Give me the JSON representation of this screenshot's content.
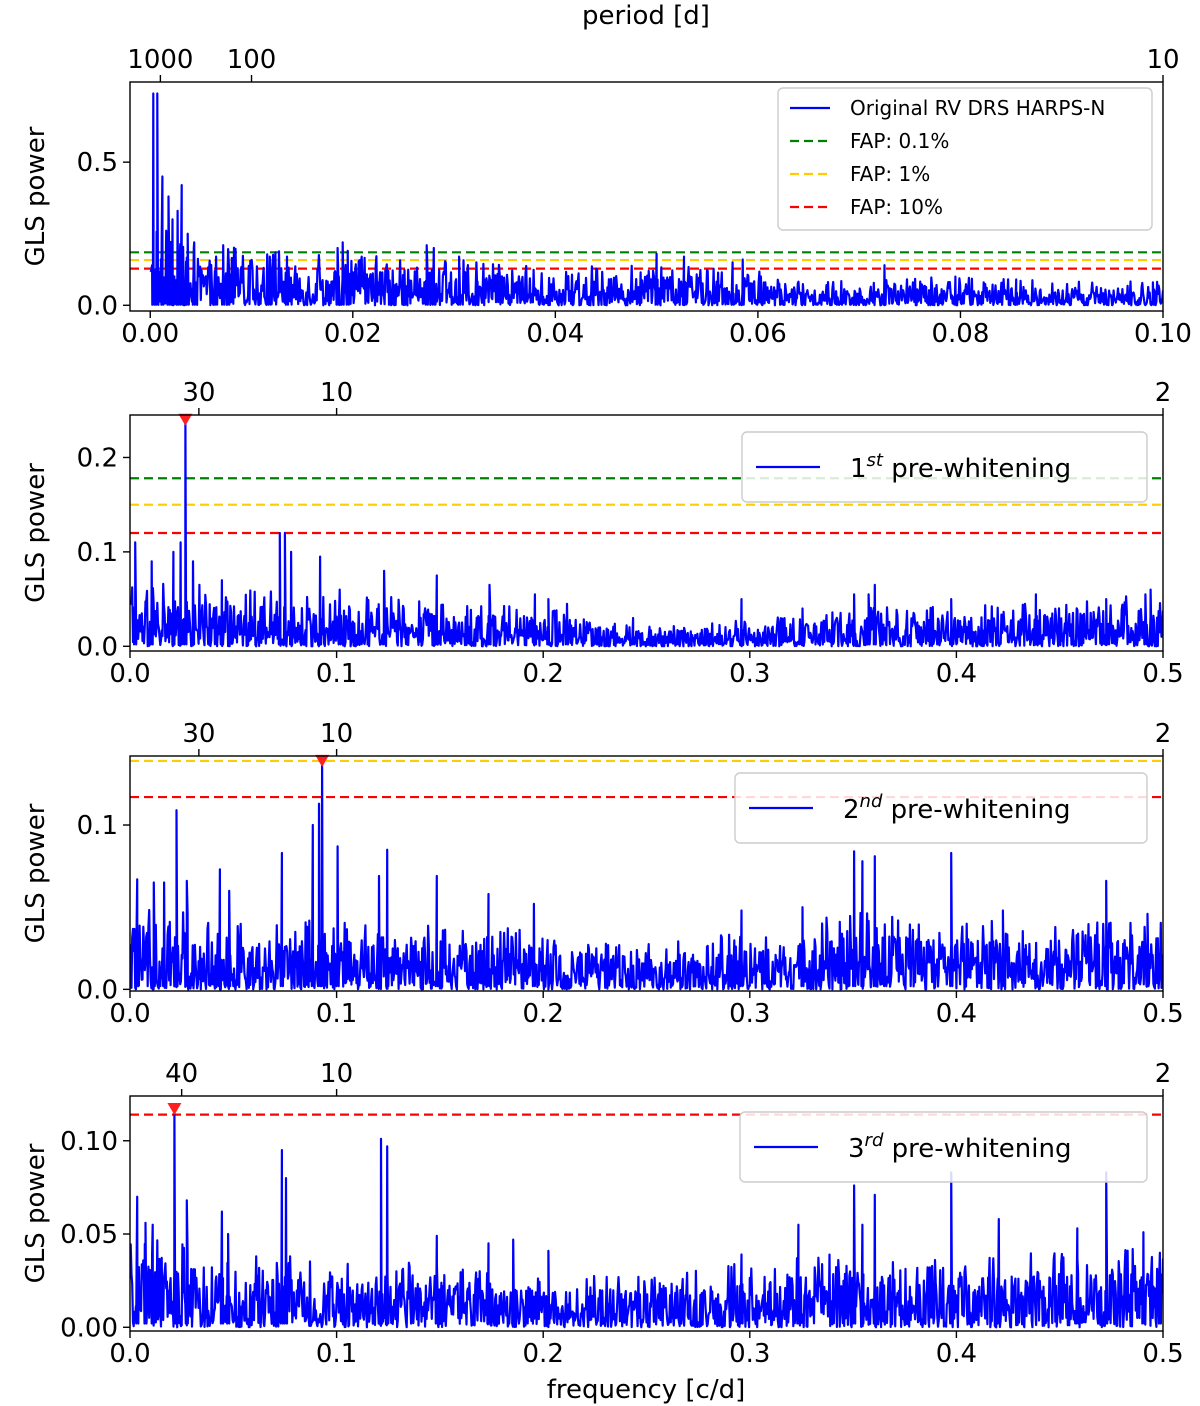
{
  "figure": {
    "top_axis_title": "period [d]",
    "bottom_axis_title": "frequency [c/d]"
  },
  "chart_data": [
    {
      "type": "line",
      "id": "original",
      "ylabel": "GLS power",
      "xlim": [
        -0.002,
        0.1
      ],
      "ylim": [
        -0.02,
        0.78
      ],
      "xticks": [
        0.0,
        0.02,
        0.04,
        0.06,
        0.08,
        0.1
      ],
      "xticklabels": [
        "0.00",
        "0.02",
        "0.04",
        "0.06",
        "0.08",
        "0.10"
      ],
      "yticks": [
        0.0,
        0.5
      ],
      "yticklabels": [
        "0.0",
        "0.5"
      ],
      "period_ticks": [
        1000,
        100,
        10
      ],
      "period_ticklabels": [
        "1000",
        "100",
        "10"
      ],
      "fap": [
        {
          "label": "FAP: 0.1%",
          "value": 0.185,
          "color": "#008000"
        },
        {
          "label": "FAP: 1%",
          "value": 0.158,
          "color": "#ffcc00"
        },
        {
          "label": "FAP: 10%",
          "value": 0.128,
          "color": "#ff0000"
        }
      ],
      "legend": {
        "position": "top-right",
        "series_label": "Original RV DRS HARPS-N"
      },
      "peaks": [
        [
          0.0003,
          0.74
        ],
        [
          0.0007,
          0.74
        ],
        [
          0.0012,
          0.45
        ],
        [
          0.0018,
          0.38
        ],
        [
          0.0022,
          0.3
        ],
        [
          0.0027,
          0.33
        ],
        [
          0.0031,
          0.42
        ],
        [
          0.0037,
          0.25
        ],
        [
          0.0043,
          0.2
        ],
        [
          0.0065,
          0.17
        ],
        [
          0.0072,
          0.21
        ],
        [
          0.0077,
          0.19
        ],
        [
          0.0118,
          0.17
        ],
        [
          0.0135,
          0.17
        ],
        [
          0.0185,
          0.2
        ],
        [
          0.019,
          0.22
        ],
        [
          0.0195,
          0.19
        ],
        [
          0.0273,
          0.21
        ],
        [
          0.028,
          0.2
        ],
        [
          0.0305,
          0.17
        ],
        [
          0.0322,
          0.15
        ],
        [
          0.05,
          0.18
        ],
        [
          0.0527,
          0.17
        ],
        [
          0.0575,
          0.15
        ],
        [
          0.0585,
          0.16
        ],
        [
          0.0725,
          0.14
        ],
        [
          0.0795,
          0.1
        ],
        [
          0.0855,
          0.09
        ],
        [
          0.099,
          0.08
        ]
      ],
      "envelope": [
        [
          0.0,
          0.2
        ],
        [
          0.005,
          0.16
        ],
        [
          0.01,
          0.14
        ],
        [
          0.02,
          0.13
        ],
        [
          0.03,
          0.12
        ],
        [
          0.04,
          0.1
        ],
        [
          0.05,
          0.1
        ],
        [
          0.06,
          0.09
        ],
        [
          0.065,
          0.06
        ],
        [
          0.07,
          0.07
        ],
        [
          0.08,
          0.07
        ],
        [
          0.09,
          0.06
        ],
        [
          0.1,
          0.06
        ]
      ]
    },
    {
      "type": "line",
      "id": "pw1",
      "ylabel": "GLS power",
      "xlim": [
        0.0,
        0.5
      ],
      "ylim": [
        -0.005,
        0.245
      ],
      "xticks": [
        0.0,
        0.1,
        0.2,
        0.3,
        0.4,
        0.5
      ],
      "xticklabels": [
        "0.0",
        "0.1",
        "0.2",
        "0.3",
        "0.4",
        "0.5"
      ],
      "yticks": [
        0.0,
        0.1,
        0.2
      ],
      "yticklabels": [
        "0.0",
        "0.1",
        "0.2"
      ],
      "period_ticks": [
        30,
        10,
        2
      ],
      "period_ticklabels": [
        "30",
        "10",
        "2"
      ],
      "fap": [
        {
          "label": "FAP: 0.1%",
          "value": 0.178,
          "color": "#008000"
        },
        {
          "label": "FAP: 1%",
          "value": 0.15,
          "color": "#ffcc00"
        },
        {
          "label": "FAP: 10%",
          "value": 0.12,
          "color": "#ff0000"
        }
      ],
      "legend": {
        "position": "upper-right",
        "ordinal": "1",
        "suffix": "st",
        "rest": " pre-whitening"
      },
      "marker": {
        "x": 0.0268,
        "y": 0.24
      },
      "peaks": [
        [
          0.0268,
          0.24
        ],
        [
          0.0025,
          0.11
        ],
        [
          0.0105,
          0.09
        ],
        [
          0.021,
          0.1
        ],
        [
          0.0245,
          0.11
        ],
        [
          0.0305,
          0.09
        ],
        [
          0.0445,
          0.07
        ],
        [
          0.0725,
          0.12
        ],
        [
          0.075,
          0.12
        ],
        [
          0.078,
          0.1
        ],
        [
          0.092,
          0.095
        ],
        [
          0.1015,
          0.06
        ],
        [
          0.123,
          0.08
        ],
        [
          0.1485,
          0.075
        ],
        [
          0.174,
          0.065
        ],
        [
          0.196,
          0.055
        ],
        [
          0.2025,
          0.05
        ],
        [
          0.2115,
          0.045
        ],
        [
          0.2435,
          0.03
        ],
        [
          0.296,
          0.05
        ],
        [
          0.3255,
          0.04
        ],
        [
          0.3505,
          0.055
        ],
        [
          0.3575,
          0.055
        ],
        [
          0.3605,
          0.065
        ],
        [
          0.3975,
          0.05
        ],
        [
          0.4385,
          0.055
        ],
        [
          0.4725,
          0.05
        ],
        [
          0.4915,
          0.055
        ],
        [
          0.494,
          0.06
        ]
      ],
      "envelope": [
        [
          0.0,
          0.05
        ],
        [
          0.05,
          0.045
        ],
        [
          0.1,
          0.04
        ],
        [
          0.15,
          0.035
        ],
        [
          0.2,
          0.03
        ],
        [
          0.25,
          0.015
        ],
        [
          0.3,
          0.02
        ],
        [
          0.35,
          0.03
        ],
        [
          0.4,
          0.03
        ],
        [
          0.45,
          0.035
        ],
        [
          0.5,
          0.04
        ]
      ]
    },
    {
      "type": "line",
      "id": "pw2",
      "ylabel": "GLS power",
      "xlim": [
        0.0,
        0.5
      ],
      "ylim": [
        -0.001,
        0.142
      ],
      "xticks": [
        0.0,
        0.1,
        0.2,
        0.3,
        0.4,
        0.5
      ],
      "xticklabels": [
        "0.0",
        "0.1",
        "0.2",
        "0.3",
        "0.4",
        "0.5"
      ],
      "yticks": [
        0.0,
        0.1
      ],
      "yticklabels": [
        "0.0",
        "0.1"
      ],
      "period_ticks": [
        30,
        10,
        2
      ],
      "period_ticklabels": [
        "30",
        "10",
        "2"
      ],
      "fap": [
        {
          "label": "FAP: 1%",
          "value": 0.139,
          "color": "#ffcc00"
        },
        {
          "label": "FAP: 10%",
          "value": 0.117,
          "color": "#ff0000"
        }
      ],
      "legend": {
        "position": "upper-right",
        "ordinal": "2",
        "suffix": "nd",
        "rest": " pre-whitening"
      },
      "marker": {
        "x": 0.093,
        "y": 0.139
      },
      "peaks": [
        [
          0.093,
          0.139
        ],
        [
          0.0915,
          0.113
        ],
        [
          0.0885,
          0.1
        ],
        [
          0.0225,
          0.109
        ],
        [
          0.0035,
          0.067
        ],
        [
          0.0115,
          0.065
        ],
        [
          0.0165,
          0.065
        ],
        [
          0.0275,
          0.066
        ],
        [
          0.0435,
          0.073
        ],
        [
          0.048,
          0.06
        ],
        [
          0.0735,
          0.083
        ],
        [
          0.1005,
          0.087
        ],
        [
          0.1205,
          0.069
        ],
        [
          0.1245,
          0.085
        ],
        [
          0.1485,
          0.069
        ],
        [
          0.1735,
          0.058
        ],
        [
          0.1955,
          0.052
        ],
        [
          0.296,
          0.048
        ],
        [
          0.3255,
          0.05
        ],
        [
          0.3505,
          0.084
        ],
        [
          0.3545,
          0.078
        ],
        [
          0.3605,
          0.081
        ],
        [
          0.3975,
          0.083
        ],
        [
          0.4225,
          0.048
        ],
        [
          0.4725,
          0.066
        ],
        [
          0.4925,
          0.046
        ]
      ],
      "envelope": [
        [
          0.0,
          0.04
        ],
        [
          0.05,
          0.03
        ],
        [
          0.1,
          0.03
        ],
        [
          0.15,
          0.03
        ],
        [
          0.2,
          0.025
        ],
        [
          0.25,
          0.02
        ],
        [
          0.3,
          0.025
        ],
        [
          0.35,
          0.035
        ],
        [
          0.4,
          0.03
        ],
        [
          0.45,
          0.03
        ],
        [
          0.5,
          0.03
        ]
      ]
    },
    {
      "type": "line",
      "id": "pw3",
      "ylabel": "GLS power",
      "xlim": [
        0.0,
        0.5
      ],
      "ylim": [
        -0.002,
        0.124
      ],
      "xticks": [
        0.0,
        0.1,
        0.2,
        0.3,
        0.4,
        0.5
      ],
      "xticklabels": [
        "0.0",
        "0.1",
        "0.2",
        "0.3",
        "0.4",
        "0.5"
      ],
      "yticks": [
        0.0,
        0.05,
        0.1
      ],
      "yticklabels": [
        "0.00",
        "0.05",
        "0.10"
      ],
      "period_ticks": [
        40,
        10,
        2
      ],
      "period_ticklabels": [
        "40",
        "10",
        "2"
      ],
      "fap": [
        {
          "label": "FAP: 10%",
          "value": 0.114,
          "color": "#ff0000"
        }
      ],
      "legend": {
        "position": "upper-right",
        "ordinal": "3",
        "suffix": "rd",
        "rest": " pre-whitening"
      },
      "marker": {
        "x": 0.0215,
        "y": 0.117
      },
      "peaks": [
        [
          0.0215,
          0.117
        ],
        [
          0.0035,
          0.07
        ],
        [
          0.0075,
          0.056
        ],
        [
          0.011,
          0.055
        ],
        [
          0.0275,
          0.068
        ],
        [
          0.0445,
          0.062
        ],
        [
          0.0475,
          0.05
        ],
        [
          0.0735,
          0.095
        ],
        [
          0.0755,
          0.08
        ],
        [
          0.1215,
          0.101
        ],
        [
          0.1245,
          0.097
        ],
        [
          0.1485,
          0.049
        ],
        [
          0.1735,
          0.045
        ],
        [
          0.1855,
          0.047
        ],
        [
          0.2025,
          0.041
        ],
        [
          0.296,
          0.039
        ],
        [
          0.3235,
          0.055
        ],
        [
          0.3505,
          0.076
        ],
        [
          0.3545,
          0.055
        ],
        [
          0.3605,
          0.071
        ],
        [
          0.3975,
          0.083
        ],
        [
          0.4205,
          0.058
        ],
        [
          0.4585,
          0.053
        ],
        [
          0.4725,
          0.083
        ],
        [
          0.4905,
          0.051
        ],
        [
          0.4985,
          0.04
        ]
      ],
      "envelope": [
        [
          0.0,
          0.035
        ],
        [
          0.05,
          0.03
        ],
        [
          0.1,
          0.025
        ],
        [
          0.15,
          0.025
        ],
        [
          0.2,
          0.02
        ],
        [
          0.25,
          0.02
        ],
        [
          0.3,
          0.025
        ],
        [
          0.35,
          0.03
        ],
        [
          0.4,
          0.025
        ],
        [
          0.45,
          0.03
        ],
        [
          0.5,
          0.03
        ]
      ]
    }
  ]
}
